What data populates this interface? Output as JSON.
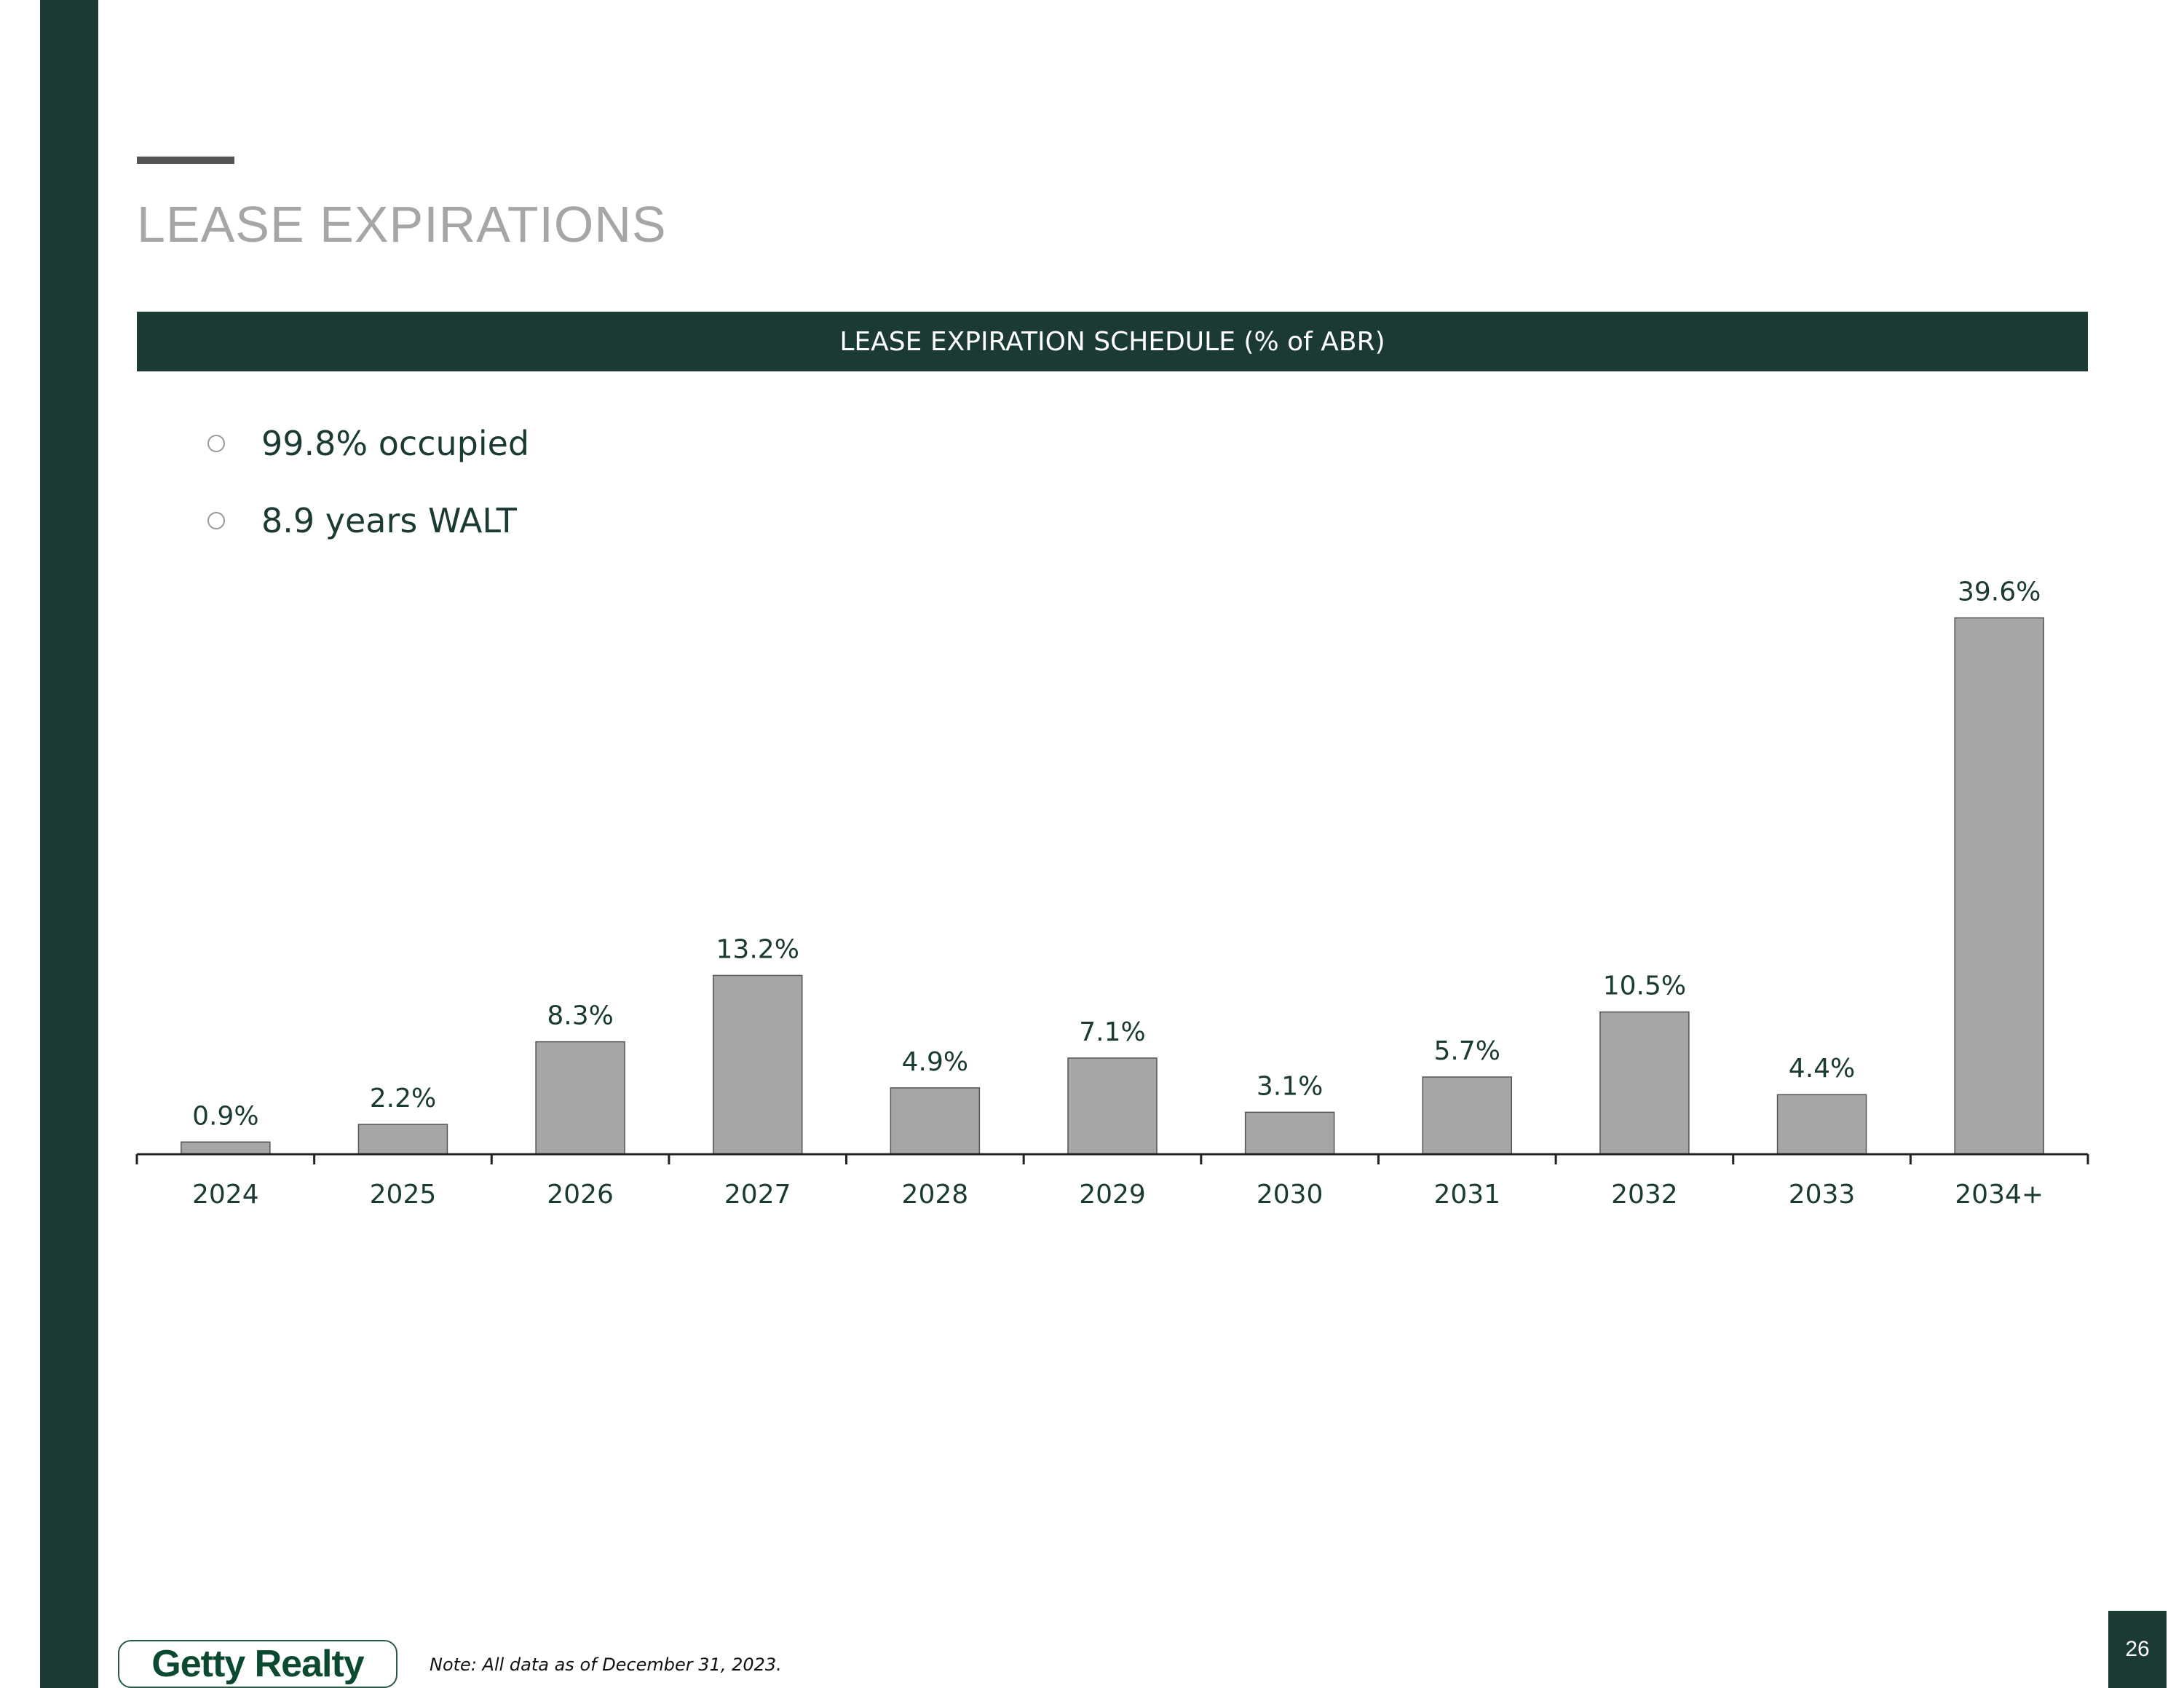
{
  "page": {
    "title": "LEASE EXPIRATIONS",
    "banner": "LEASE EXPIRATION SCHEDULE (% of ABR)",
    "bullets": [
      "99.8% occupied",
      "8.9 years WALT"
    ],
    "note": "Note: All data as of December 31, 2023.",
    "logo_text": "Getty Realty",
    "page_number": "26"
  },
  "colors": {
    "brand": "#1a3a33",
    "bar": "#a6a6a6",
    "bar_stroke": "#555555"
  },
  "chart_data": {
    "type": "bar",
    "title": "LEASE EXPIRATION SCHEDULE (% of ABR)",
    "xlabel": "",
    "ylabel": "% of ABR",
    "categories": [
      "2024",
      "2025",
      "2026",
      "2027",
      "2028",
      "2029",
      "2030",
      "2031",
      "2032",
      "2033",
      "2034+"
    ],
    "values": [
      0.9,
      2.2,
      8.3,
      13.2,
      4.9,
      7.1,
      3.1,
      5.7,
      10.5,
      4.4,
      39.6
    ],
    "labels": [
      "0.9%",
      "2.2%",
      "8.3%",
      "13.2%",
      "4.9%",
      "7.1%",
      "3.1%",
      "5.7%",
      "10.5%",
      "4.4%",
      "39.6%"
    ],
    "ylim": [
      0,
      40
    ],
    "grid": false
  }
}
